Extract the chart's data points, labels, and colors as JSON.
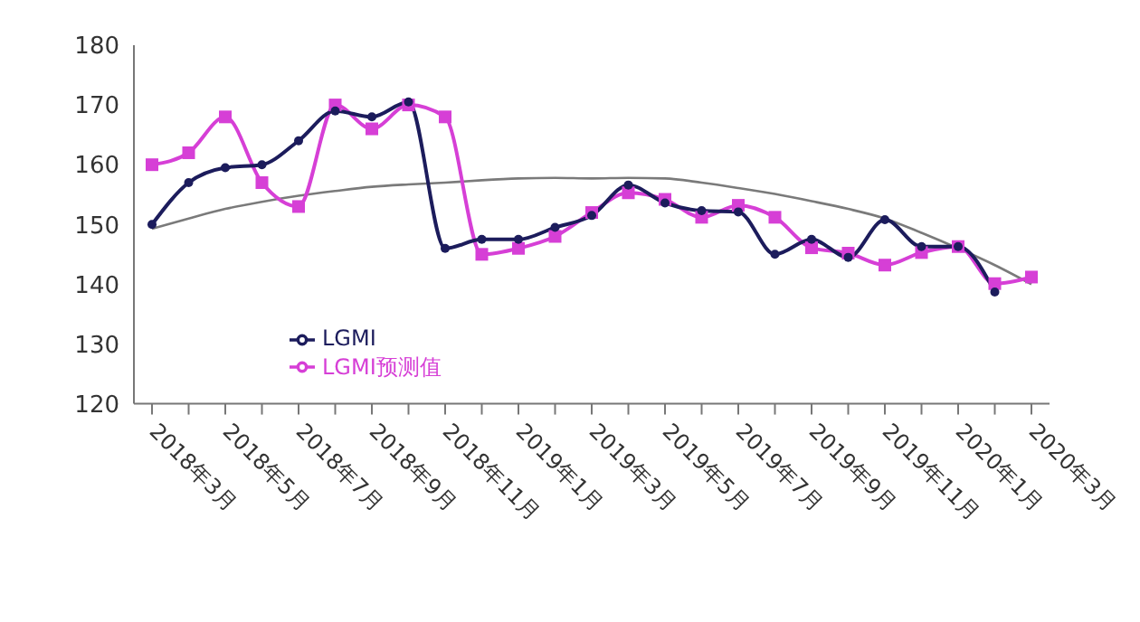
{
  "chart_data": {
    "type": "line",
    "categories": [
      "2018年3月",
      null,
      "2018年5月",
      null,
      "2018年7月",
      null,
      "2018年9月",
      null,
      "2018年11月",
      null,
      "2019年1月",
      null,
      "2019年3月",
      null,
      "2019年5月",
      null,
      "2019年7月",
      null,
      "2019年9月",
      null,
      "2019年11月",
      null,
      "2020年1月",
      null,
      "2020年3月"
    ],
    "series": [
      {
        "name": "LGMI",
        "color": "#1c1c5c",
        "marker": "circle",
        "values": [
          150,
          157,
          159.5,
          160,
          164,
          169,
          168,
          170.5,
          146,
          147.5,
          147.5,
          149.5,
          151.5,
          156.6,
          153.6,
          152.3,
          152.1,
          145,
          147.5,
          144.5,
          150.8,
          146.3,
          146.3,
          138.7,
          null
        ]
      },
      {
        "name": "LGMI预测值",
        "color": "#d63fd6",
        "marker": "square",
        "values": [
          160,
          162,
          168,
          157,
          153,
          170,
          166,
          170,
          168,
          145,
          146,
          148,
          152,
          155.3,
          154.2,
          151.2,
          153.2,
          151.2,
          146.1,
          145.2,
          143.2,
          145.3,
          146.3,
          140.1,
          141.2
        ]
      },
      {
        "type": "line",
        "color": "#7a7a7a",
        "marker": "none",
        "values": [
          149.3,
          151,
          152.6,
          153.8,
          154.8,
          155.6,
          156.3,
          156.7,
          157,
          157.4,
          157.7,
          157.8,
          157.7,
          157.8,
          157.7,
          157,
          156.1,
          155.1,
          153.9,
          152.6,
          151,
          148.6,
          146,
          143.2,
          140
        ]
      }
    ],
    "ylim": [
      120,
      180
    ],
    "yticks": [
      120,
      130,
      140,
      150,
      160,
      170,
      180
    ],
    "legend": "bottom left"
  }
}
